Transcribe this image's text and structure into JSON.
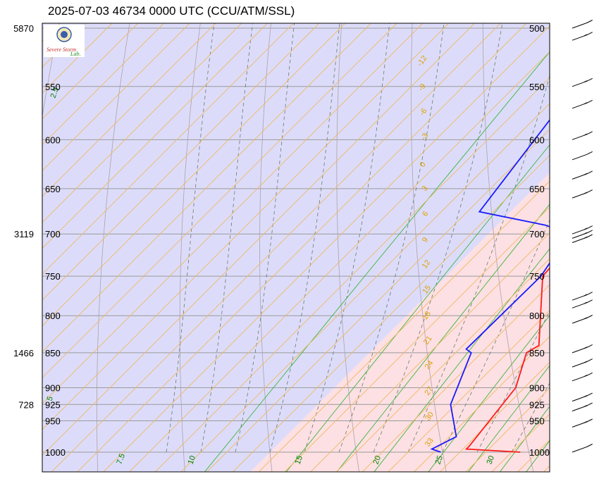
{
  "title": "2025-07-03 46734 0000 UTC (CCU/ATM/SSL)",
  "logo": {
    "text_main": "Severe Storm",
    "text_lab": "Lab."
  },
  "chart_data": {
    "type": "skew-t",
    "title": "2025-07-03 46734 0000 UTC (CCU/ATM/SSL)",
    "pressure_levels_left": [
      550,
      600,
      650,
      700,
      750,
      800,
      850,
      900,
      925,
      950,
      1000
    ],
    "pressure_levels_right": [
      500,
      550,
      600,
      650,
      700,
      750,
      800,
      850,
      900,
      925,
      950,
      1000
    ],
    "height_labels": [
      {
        "p": 500,
        "label": "5870"
      },
      {
        "p": 700,
        "label": "3119"
      },
      {
        "p": 850,
        "label": "1466"
      },
      {
        "p": 925,
        "label": "728"
      }
    ],
    "isotherm_labels": [
      "-12",
      "-9",
      "-6",
      "-3",
      "0",
      "3",
      "6",
      "9",
      "12",
      "15",
      "18",
      "21",
      "24",
      "27",
      "30",
      "33"
    ],
    "mixing_ratio_labels": [
      "2.5",
      "5",
      "7.5",
      "10",
      "15",
      "20",
      "25",
      "30"
    ],
    "temperature": [
      {
        "p": 1000,
        "t": 29.0
      },
      {
        "p": 995,
        "t": 22.4
      },
      {
        "p": 990,
        "t": 22.4
      },
      {
        "p": 900,
        "t": 21.0
      },
      {
        "p": 850,
        "t": 18.2
      },
      {
        "p": 840,
        "t": 18.8
      },
      {
        "p": 750,
        "t": 11.2
      },
      {
        "p": 700,
        "t": 10.6
      },
      {
        "p": 690,
        "t": 14.4
      },
      {
        "p": 660,
        "t": 13.6
      },
      {
        "p": 600,
        "t": 6.8
      },
      {
        "p": 520,
        "t": -5.4
      },
      {
        "p": 500,
        "t": -5.4
      }
    ],
    "dewpoint": [
      {
        "p": 1000,
        "t": 19.8
      },
      {
        "p": 995,
        "t": 18.4
      },
      {
        "p": 975,
        "t": 19.8
      },
      {
        "p": 925,
        "t": 15.4
      },
      {
        "p": 850,
        "t": 11.8
      },
      {
        "p": 845,
        "t": 10.8
      },
      {
        "p": 750,
        "t": 11.0
      },
      {
        "p": 700,
        "t": 9.4
      },
      {
        "p": 690,
        "t": 5.6
      },
      {
        "p": 675,
        "t": -3.6
      },
      {
        "p": 550,
        "t": -7.0
      },
      {
        "p": 520,
        "t": -7.4
      },
      {
        "p": 500,
        "t": -13.6
      }
    ],
    "wind_barbs": [
      {
        "p": 500,
        "dir": 250,
        "spd": 10
      },
      {
        "p": 510,
        "dir": 250,
        "spd": 15
      },
      {
        "p": 550,
        "dir": 250,
        "spd": 15
      },
      {
        "p": 570,
        "dir": 250,
        "spd": 15
      },
      {
        "p": 600,
        "dir": 250,
        "spd": 15
      },
      {
        "p": 620,
        "dir": 250,
        "spd": 10
      },
      {
        "p": 640,
        "dir": 250,
        "spd": 15
      },
      {
        "p": 660,
        "dir": 250,
        "spd": 15
      },
      {
        "p": 700,
        "dir": 250,
        "spd": 15
      },
      {
        "p": 705,
        "dir": 250,
        "spd": 15
      },
      {
        "p": 710,
        "dir": 250,
        "spd": 15
      },
      {
        "p": 780,
        "dir": 250,
        "spd": 15
      },
      {
        "p": 790,
        "dir": 250,
        "spd": 15
      },
      {
        "p": 810,
        "dir": 250,
        "spd": 15
      },
      {
        "p": 850,
        "dir": 250,
        "spd": 15
      },
      {
        "p": 870,
        "dir": 250,
        "spd": 15
      },
      {
        "p": 890,
        "dir": 250,
        "spd": 15
      },
      {
        "p": 920,
        "dir": 250,
        "spd": 15
      },
      {
        "p": 935,
        "dir": 250,
        "spd": 15
      },
      {
        "p": 960,
        "dir": 250,
        "spd": 15
      },
      {
        "p": 1000,
        "dir": 250,
        "spd": 10
      }
    ]
  }
}
